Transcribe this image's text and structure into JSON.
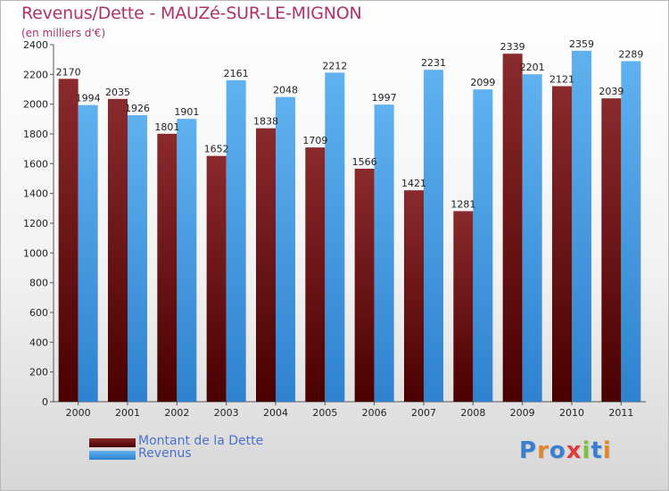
{
  "title": "Revenus/Dette - MAUZé-SUR-LE-MIGNON",
  "subtitle": "(en milliers d'€)",
  "colors": {
    "dette": "#6b0f12",
    "revenus": "#4a9fe0",
    "title": "#b0306a"
  },
  "legend": {
    "dette_label": "Montant de la Dette",
    "revenus_label": "Revenus"
  },
  "logo": {
    "text": "Proxiti"
  },
  "chart_data": {
    "type": "bar",
    "title": "Revenus/Dette - MAUZé-SUR-LE-MIGNON",
    "subtitle": "(en milliers d'€)",
    "categories": [
      "2000",
      "2001",
      "2002",
      "2003",
      "2004",
      "2005",
      "2006",
      "2007",
      "2008",
      "2009",
      "2010",
      "2011"
    ],
    "series": [
      {
        "name": "Montant de la Dette",
        "values": [
          2170,
          2035,
          1801,
          1652,
          1838,
          1709,
          1566,
          1421,
          1281,
          2339,
          2121,
          2039
        ],
        "labels": [
          "2170",
          "2035",
          "1801",
          "1652",
          "1838",
          "1709",
          "1566",
          "1421",
          "1281",
          "2339",
          "2121",
          "2039"
        ]
      },
      {
        "name": "Revenus",
        "values": [
          1994,
          1926,
          1901,
          2161,
          2048,
          2212,
          1997,
          2231,
          2099,
          2201,
          2359,
          2289
        ],
        "labels": [
          "1994",
          "1926",
          "1901",
          "2161",
          "2048",
          "2212",
          "1997",
          "2231",
          "2099",
          "2201",
          "2359",
          "2289"
        ]
      }
    ],
    "ylim": [
      0,
      2400
    ],
    "yticks": [
      0,
      200,
      400,
      600,
      800,
      1000,
      1200,
      1400,
      1600,
      1800,
      2000,
      2200,
      2400
    ],
    "xlabel": "",
    "ylabel": "",
    "grid": false,
    "legend_position": "bottom-left"
  }
}
